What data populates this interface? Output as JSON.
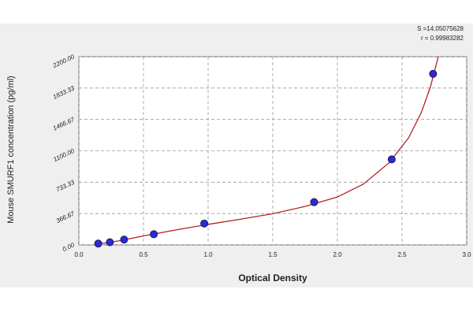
{
  "chart_data": {
    "type": "scatter",
    "xlabel": "Optical Density",
    "ylabel": "Mouse SMURF1 concentration (pg/ml)",
    "annotations": [
      "S =14.05075628",
      "r = 0.99983282"
    ],
    "series": [
      {
        "color": "#2b2bd0",
        "x": [
          0.15,
          0.24,
          0.35,
          0.58,
          0.97,
          1.82,
          2.42,
          2.74
        ],
        "values": [
          15.6,
          31.25,
          62.5,
          125,
          250,
          500,
          1000,
          2000
        ]
      }
    ],
    "fit_curve": {
      "color": "#b22222",
      "x": [
        0.15,
        0.3,
        0.5,
        0.75,
        1.0,
        1.25,
        1.5,
        1.75,
        2.0,
        2.2,
        2.4,
        2.55,
        2.65,
        2.72,
        2.78
      ],
      "values": [
        10,
        45,
        105,
        175,
        240,
        300,
        365,
        450,
        560,
        710,
        960,
        1250,
        1550,
        1850,
        2200
      ]
    },
    "xlim": [
      0,
      3
    ],
    "xticks": [
      {
        "value": 0,
        "label": "0.0"
      },
      {
        "value": 0.5,
        "label": "0.5"
      },
      {
        "value": 1,
        "label": "1.0"
      },
      {
        "value": 1.5,
        "label": "1.5"
      },
      {
        "value": 2,
        "label": "2.0"
      },
      {
        "value": 2.5,
        "label": "2.5"
      },
      {
        "value": 3,
        "label": "3.0"
      }
    ],
    "ylim": [
      0,
      2200
    ],
    "yticks": [
      {
        "value": 0,
        "label": "0.00"
      },
      {
        "value": 366.67,
        "label": "366.67"
      },
      {
        "value": 733.33,
        "label": "733.33"
      },
      {
        "value": 1100,
        "label": "1100.00"
      },
      {
        "value": 1466.67,
        "label": "1466.67"
      },
      {
        "value": 1833.33,
        "label": "1833.33"
      },
      {
        "value": 2200,
        "label": "2200.00"
      }
    ],
    "grid": true
  }
}
